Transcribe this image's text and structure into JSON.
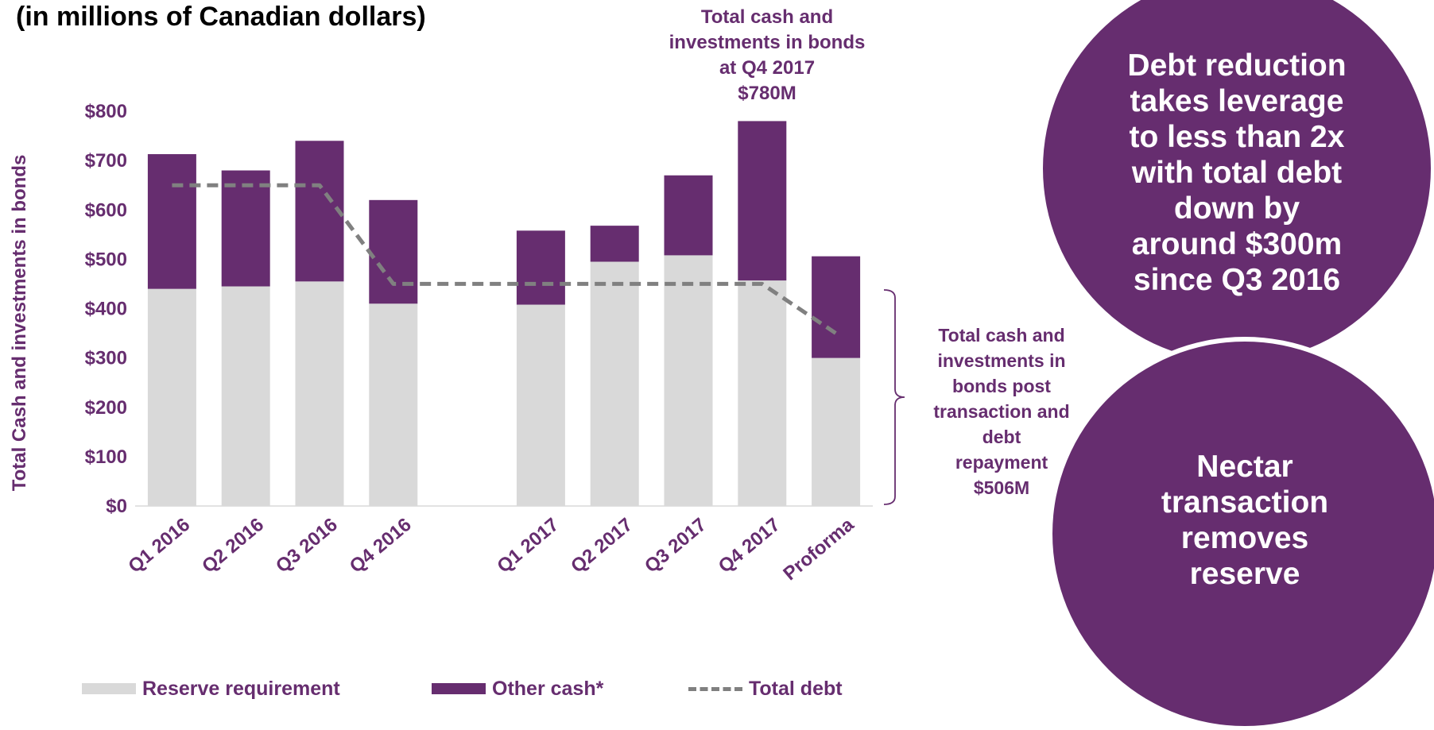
{
  "title": "(in millions of Canadian dollars)",
  "annotations": {
    "top": [
      "Total cash and",
      "investments in bonds",
      "at Q4 2017",
      "$780M"
    ],
    "side": [
      "Total cash and",
      "investments in",
      "bonds post",
      "transaction and",
      "debt",
      "repayment",
      "$506M"
    ]
  },
  "callouts": {
    "first": [
      "Debt reduction",
      "takes leverage",
      "to less than 2x",
      "with total debt",
      "down by",
      "around $300m",
      "since Q3 2016"
    ],
    "second": [
      "Nectar",
      "transaction",
      "removes",
      "reserve"
    ]
  },
  "legend": {
    "reserve": "Reserve requirement",
    "other": "Other cash*",
    "debt": "Total debt"
  },
  "colors": {
    "reserve": "#d9d9d9",
    "other": "#662d6f",
    "debt": "#808080",
    "text": "#662d6f"
  },
  "chart_data": {
    "type": "bar",
    "stacked": true,
    "ylabel": "Total Cash and investments in bonds",
    "ylim": [
      0,
      800
    ],
    "yticks": [
      "$0",
      "$100",
      "$200",
      "$300",
      "$400",
      "$500",
      "$600",
      "$700",
      "$800"
    ],
    "categories": [
      "Q1 2016",
      "Q2 2016",
      "Q3 2016",
      "Q4 2016",
      "",
      "Q1 2017",
      "Q2 2017",
      "Q3 2017",
      "Q4 2017",
      "Proforma"
    ],
    "series": [
      {
        "name": "Reserve requirement",
        "values": [
          440,
          445,
          455,
          410,
          null,
          408,
          495,
          508,
          457,
          300
        ]
      },
      {
        "name": "Other cash*",
        "values": [
          273,
          235,
          285,
          210,
          null,
          150,
          73,
          162,
          323,
          206
        ]
      }
    ],
    "line": {
      "name": "Total debt",
      "values": [
        650,
        650,
        650,
        450,
        450,
        450,
        450,
        450,
        450,
        350
      ]
    },
    "grid": false,
    "legend_position": "bottom"
  }
}
